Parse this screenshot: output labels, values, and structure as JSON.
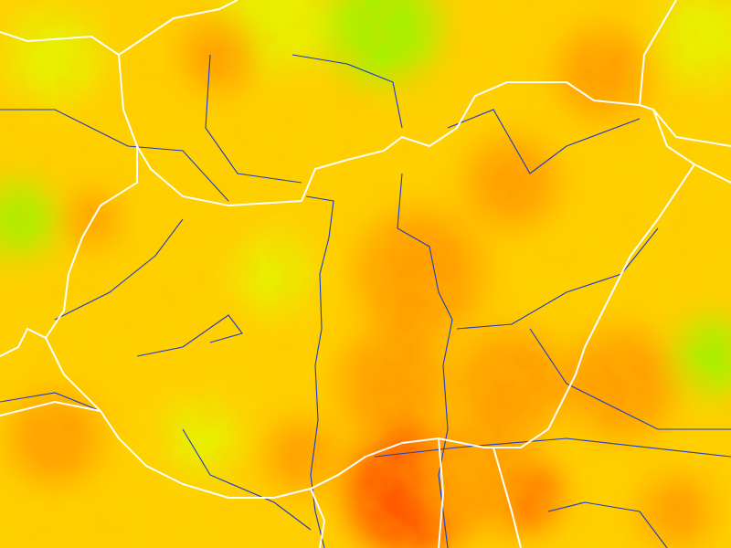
{
  "map": {
    "type": "temperature-field",
    "colors": {
      "base": "#ffd000",
      "warm": "#ffa000",
      "hot": "#ff5a00",
      "cool": "#e8f000",
      "cold": "#a8f000",
      "rivers": "#1a3cc8",
      "borders": "#ffffff"
    },
    "layers": [
      "temperature-shading",
      "rivers",
      "country-borders"
    ]
  }
}
